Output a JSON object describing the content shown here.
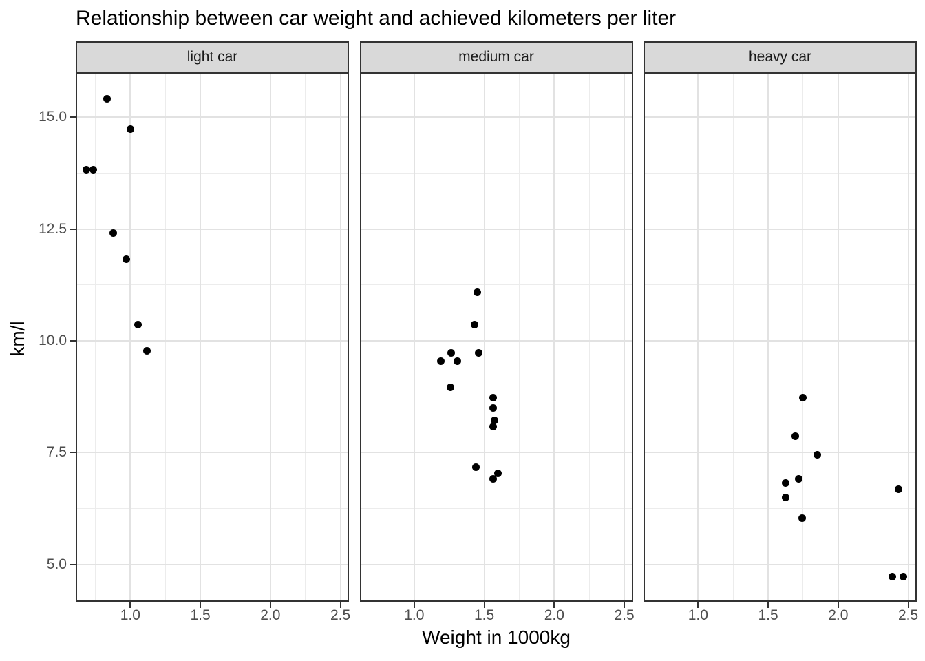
{
  "chart_data": {
    "type": "scatter",
    "title": "Relationship between car weight and achieved kilometers per liter",
    "xlabel": "Weight in 1000kg",
    "ylabel": "km/l",
    "legend": "none",
    "grid": true,
    "point_color": "#000000",
    "xlim": [
      0.61,
      2.561
    ],
    "ylim": [
      4.169,
      15.985
    ],
    "x_tick_values": [
      1.0,
      1.5,
      2.0,
      2.5
    ],
    "x_tick_labels": [
      "1.0",
      "1.5",
      "2.0",
      "2.5"
    ],
    "x_minor_ticks": [
      0.75,
      1.25,
      1.75,
      2.25
    ],
    "y_tick_values": [
      5.0,
      7.5,
      10.0,
      12.5,
      15.0
    ],
    "y_tick_labels": [
      "5.0",
      "7.5",
      "10.0",
      "12.5",
      "15.0"
    ],
    "y_minor_ticks": [
      6.25,
      8.75,
      11.25,
      13.75
    ],
    "facets": [
      {
        "label": "light car",
        "points": [
          [
            0.688,
            13.818
          ],
          [
            0.734,
            13.818
          ],
          [
            0.834,
            15.409
          ],
          [
            0.88,
            12.409
          ],
          [
            0.973,
            11.818
          ],
          [
            1.0,
            14.727
          ],
          [
            1.055,
            10.364
          ],
          [
            1.12,
            9.773
          ]
        ]
      },
      {
        "label": "medium car",
        "points": [
          [
            1.191,
            9.545
          ],
          [
            1.259,
            8.955
          ],
          [
            1.264,
            9.727
          ],
          [
            1.307,
            9.545
          ],
          [
            1.432,
            10.364
          ],
          [
            1.441,
            7.182
          ],
          [
            1.45,
            11.091
          ],
          [
            1.461,
            9.727
          ],
          [
            1.561,
            6.909
          ],
          [
            1.564,
            8.5
          ],
          [
            1.564,
            8.727
          ],
          [
            1.564,
            8.091
          ],
          [
            1.573,
            8.227
          ],
          [
            1.6,
            7.045
          ]
        ]
      },
      {
        "label": "heavy car",
        "points": [
          [
            1.623,
            6.5
          ],
          [
            1.623,
            6.818
          ],
          [
            1.695,
            7.864
          ],
          [
            1.718,
            6.909
          ],
          [
            1.745,
            6.045
          ],
          [
            1.748,
            8.727
          ],
          [
            1.85,
            7.455
          ],
          [
            2.386,
            4.727
          ],
          [
            2.43,
            6.682
          ],
          [
            2.465,
            4.727
          ]
        ]
      }
    ],
    "colors": {
      "strip_fill": "#d9d9d9",
      "strip_border": "#333333",
      "panel_border": "#333333",
      "grid_major": "#e2e2e2",
      "grid_minor": "#ececec",
      "tick_mark": "#333333",
      "tick_label": "#4d4d4d",
      "text": "#000000"
    }
  }
}
